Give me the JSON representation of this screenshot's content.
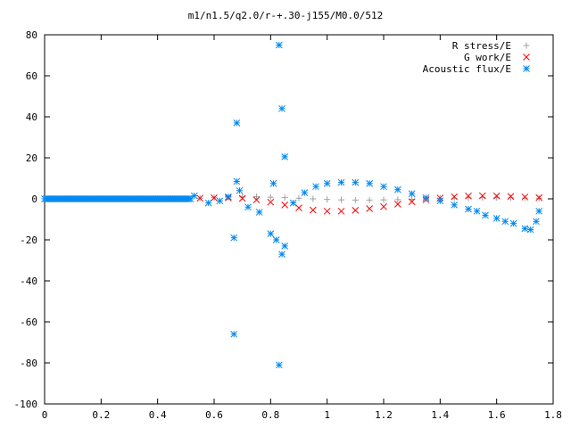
{
  "chart_data": {
    "type": "scatter",
    "title": "m1/n1.5/q2.0/r-+.30-j155/M0.0/512",
    "xlabel": "",
    "ylabel": "",
    "xlim": [
      0,
      1.8
    ],
    "ylim": [
      -100,
      80
    ],
    "xticks": [
      "0",
      "0.2",
      "0.4",
      "0.6",
      "0.8",
      "1",
      "1.2",
      "1.4",
      "1.6",
      "1.8"
    ],
    "yticks": [
      "80",
      "60",
      "40",
      "20",
      "0",
      "-20",
      "-40",
      "-60",
      "-80",
      "-100"
    ],
    "xtick_values": [
      0,
      0.2,
      0.4,
      0.6,
      0.8,
      1.0,
      1.2,
      1.4,
      1.6,
      1.8
    ],
    "ytick_values": [
      80,
      60,
      40,
      20,
      0,
      -20,
      -40,
      -60,
      -80,
      -100
    ],
    "grid": false,
    "legend": "top-right",
    "series": [
      {
        "name": "R stress/E",
        "marker": "plus",
        "color": "#a0a0a0",
        "x": [
          0.55,
          0.6,
          0.65,
          0.7,
          0.75,
          0.8,
          0.85,
          0.9,
          0.95,
          1.0,
          1.05,
          1.1,
          1.15,
          1.2,
          1.25,
          1.3,
          1.35,
          1.4,
          1.45,
          1.5,
          1.55,
          1.6,
          1.65,
          1.7,
          1.75
        ],
        "y": [
          0.3,
          0.6,
          0.8,
          1.0,
          1.0,
          0.8,
          0.6,
          0.3,
          0.0,
          -0.3,
          -0.5,
          -0.6,
          -0.6,
          -0.5,
          -0.4,
          -0.2,
          0.0,
          0.2,
          0.4,
          0.5,
          0.6,
          0.6,
          0.5,
          0.4,
          0.3
        ]
      },
      {
        "name": "G work/E",
        "marker": "cross",
        "color": "#ff0000",
        "x": [
          0.55,
          0.6,
          0.65,
          0.7,
          0.75,
          0.8,
          0.85,
          0.9,
          0.95,
          1.0,
          1.05,
          1.1,
          1.15,
          1.2,
          1.25,
          1.3,
          1.35,
          1.4,
          1.45,
          1.5,
          1.55,
          1.6,
          1.65,
          1.7,
          1.75
        ],
        "y": [
          0.3,
          0.5,
          0.5,
          0.2,
          -0.5,
          -1.6,
          -3.0,
          -4.4,
          -5.5,
          -6.0,
          -6.0,
          -5.6,
          -4.8,
          -3.8,
          -2.6,
          -1.4,
          -0.4,
          0.4,
          1.0,
          1.4,
          1.5,
          1.4,
          1.2,
          0.9,
          0.6
        ]
      },
      {
        "name": "Acoustic flux/E",
        "marker": "star",
        "color": "#0088ee",
        "x": [
          0.53,
          0.58,
          0.62,
          0.65,
          0.67,
          0.67,
          0.68,
          0.68,
          0.69,
          0.72,
          0.76,
          0.8,
          0.81,
          0.82,
          0.83,
          0.83,
          0.84,
          0.84,
          0.85,
          0.85,
          0.88,
          0.92,
          0.96,
          1.0,
          1.05,
          1.1,
          1.15,
          1.2,
          1.25,
          1.3,
          1.35,
          1.4,
          1.45,
          1.5,
          1.53,
          1.56,
          1.6,
          1.63,
          1.66,
          1.7,
          1.72,
          1.74,
          1.75
        ],
        "y": [
          1.5,
          -2.0,
          -1.0,
          1.0,
          -19.0,
          -66.0,
          37.0,
          8.5,
          4.0,
          -4.0,
          -6.5,
          -17.0,
          7.5,
          -20.0,
          75.0,
          -81.0,
          -27.0,
          44.0,
          20.5,
          -23.0,
          -2.0,
          3.0,
          6.0,
          7.5,
          8.0,
          8.0,
          7.5,
          6.0,
          4.5,
          2.5,
          0.5,
          -1.0,
          -3.0,
          -5.0,
          -6.0,
          -8.0,
          -9.5,
          -11.0,
          -12.0,
          -14.5,
          -15.0,
          -11.0,
          -6.0
        ]
      }
    ]
  }
}
